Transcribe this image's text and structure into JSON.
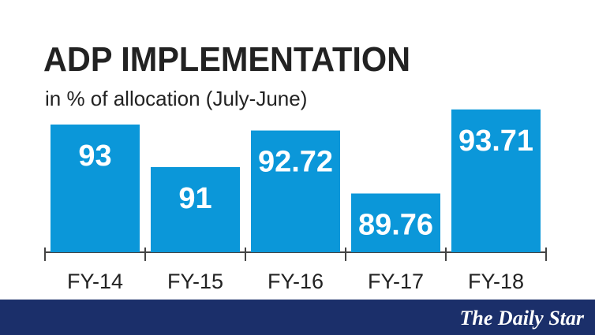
{
  "chart_data": {
    "type": "bar",
    "title": "ADP IMPLEMENTATION",
    "subtitle": "in % of allocation (July-June)",
    "categories": [
      "FY-14",
      "FY-15",
      "FY-16",
      "FY-17",
      "FY-18"
    ],
    "values": [
      93,
      91,
      92.72,
      89.76,
      93.71
    ],
    "color": "#0b97d9",
    "ylim": [
      87,
      94
    ]
  },
  "footer": {
    "brand": "The Daily Star"
  }
}
